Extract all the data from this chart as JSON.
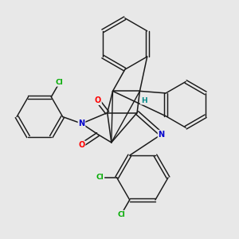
{
  "bg_color": "#e8e8e8",
  "bond_color": "#1a1a1a",
  "atom_colors": {
    "O": "#ff0000",
    "N": "#0000cc",
    "Cl": "#00aa00",
    "H": "#008888",
    "C": "#1a1a1a"
  },
  "figsize": [
    3.0,
    3.0
  ],
  "dpi": 100
}
